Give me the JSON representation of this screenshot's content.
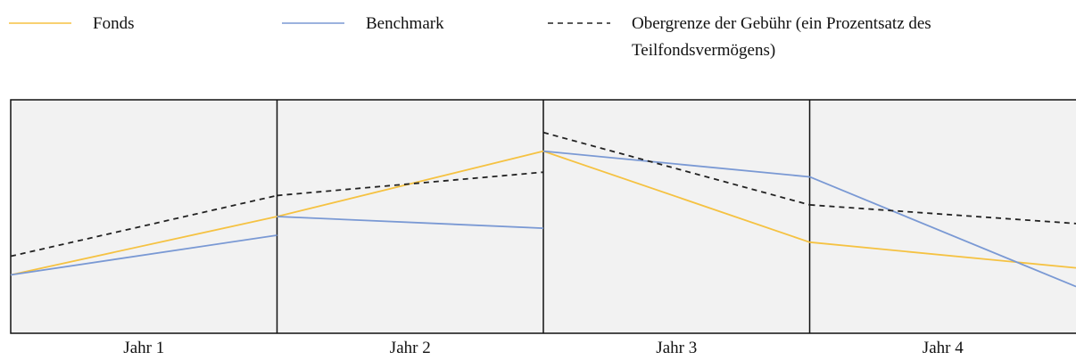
{
  "chart_data": {
    "type": "line",
    "categories": [
      "Jahr 1",
      "Jahr 2",
      "Jahr 3",
      "Jahr 4"
    ],
    "ylim": [
      0,
      100
    ],
    "series": [
      {
        "name": "Fonds",
        "color": "#f5c242",
        "dash": false,
        "values": [
          [
            25,
            50
          ],
          [
            50,
            78
          ],
          [
            78,
            39
          ],
          [
            39,
            28
          ]
        ]
      },
      {
        "name": "Benchmark",
        "color": "#7a99d4",
        "dash": false,
        "values": [
          [
            25,
            42
          ],
          [
            50,
            45
          ],
          [
            78,
            67
          ],
          [
            67,
            20
          ]
        ]
      },
      {
        "name": "Obergrenze der Gebühr (ein Prozentsatz des Teilfondsvermögens)",
        "color": "#222222",
        "dash": true,
        "values": [
          [
            33,
            59
          ],
          [
            59,
            69
          ],
          [
            86,
            55
          ],
          [
            55,
            47
          ]
        ]
      }
    ]
  }
}
